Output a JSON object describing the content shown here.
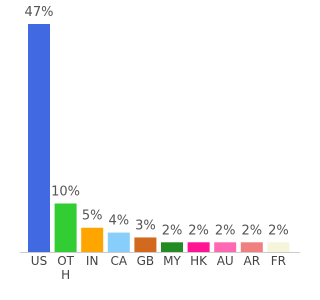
{
  "chart_data": {
    "type": "bar",
    "categories": [
      "US",
      "OTH",
      "IN",
      "CA",
      "GB",
      "MY",
      "HK",
      "AU",
      "AR",
      "FR"
    ],
    "values": [
      47,
      10,
      5,
      4,
      3,
      2,
      2,
      2,
      2,
      2
    ],
    "value_labels": [
      "47%",
      "10%",
      "5%",
      "4%",
      "3%",
      "2%",
      "2%",
      "2%",
      "2%",
      "2%"
    ],
    "colors": [
      "#4169e1",
      "#32cd32",
      "#ffa500",
      "#87cefa",
      "#d2691e",
      "#228b22",
      "#ff1493",
      "#ff69b4",
      "#f08080",
      "#f5f5dc"
    ]
  }
}
